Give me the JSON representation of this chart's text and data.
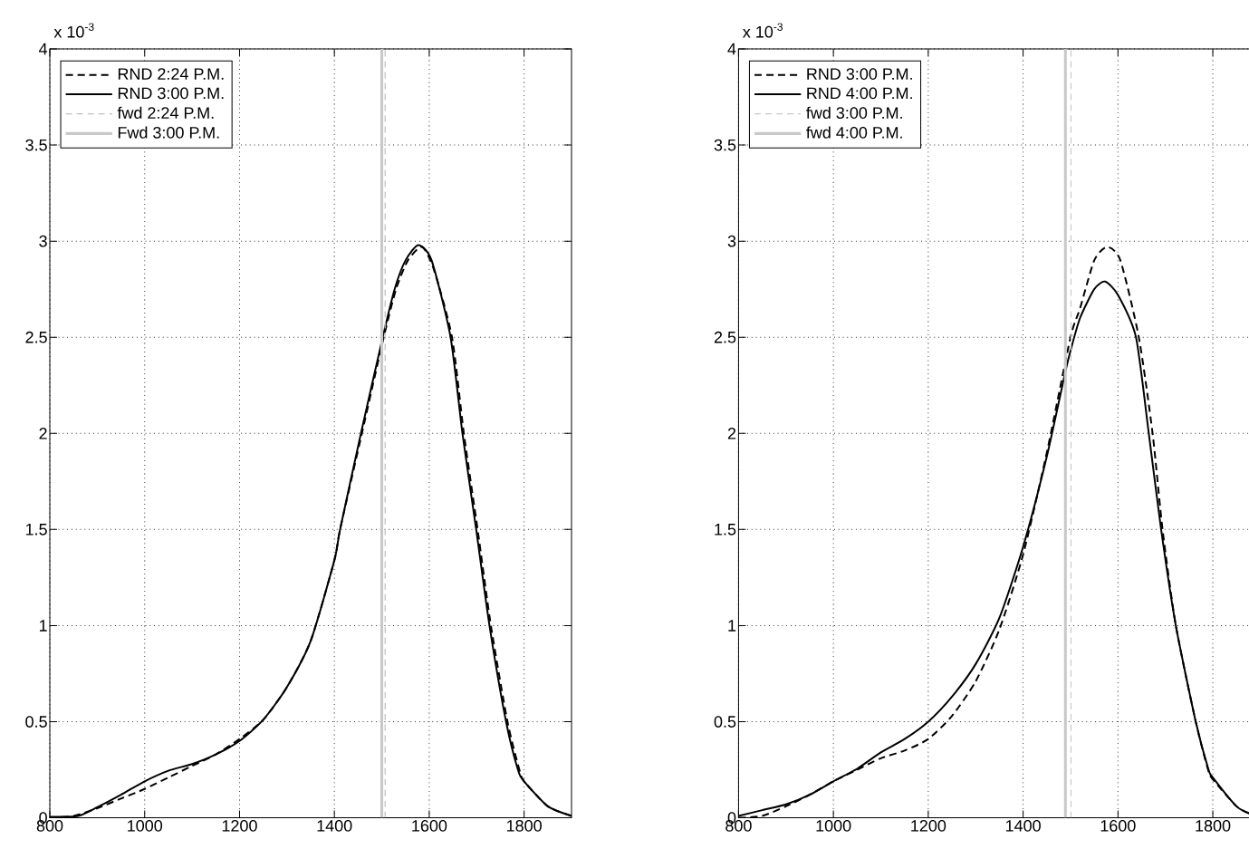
{
  "chart_data": [
    {
      "type": "line",
      "xlim": [
        800,
        1900
      ],
      "ylim": [
        0,
        4
      ],
      "xticks": [
        800,
        1000,
        1200,
        1400,
        1600,
        1800
      ],
      "yticks": [
        0,
        0.5,
        1,
        1.5,
        2,
        2.5,
        3,
        3.5,
        4
      ],
      "grid": true,
      "legend": "top left",
      "annotations": [
        "x 10$^{-3}$"
      ],
      "series": [
        {
          "name": "RND 2:24 P.M.",
          "color": "#000000",
          "line_style": "dashed",
          "x": [
            800,
            850,
            900,
            950,
            1000,
            1050,
            1100,
            1150,
            1200,
            1250,
            1300,
            1350,
            1400,
            1412,
            1458,
            1504,
            1530,
            1555,
            1585,
            1610,
            1648,
            1673,
            1702,
            1730,
            1765,
            1790,
            1800,
            1850,
            1900
          ],
          "values": [
            0,
            0.01,
            0.05,
            0.1,
            0.15,
            0.21,
            0.27,
            0.33,
            0.41,
            0.51,
            0.68,
            0.92,
            1.34,
            1.5,
            2.0,
            2.5,
            2.75,
            2.9,
            2.97,
            2.85,
            2.5,
            2.0,
            1.5,
            1.0,
            0.5,
            0.25,
            0.19,
            0.06,
            0.01
          ]
        },
        {
          "name": "RND 3:00 P.M.",
          "color": "#000000",
          "line_style": "solid",
          "x": [
            800,
            860,
            900,
            950,
            1000,
            1050,
            1100,
            1150,
            1200,
            1250,
            1300,
            1350,
            1400,
            1412,
            1456,
            1502,
            1527,
            1550,
            1577,
            1605,
            1645,
            1670,
            1699,
            1727,
            1762,
            1787,
            1800,
            1850,
            1900
          ],
          "values": [
            0.005,
            0.01,
            0.055,
            0.12,
            0.19,
            0.245,
            0.28,
            0.33,
            0.4,
            0.51,
            0.68,
            0.92,
            1.34,
            1.5,
            2.0,
            2.5,
            2.75,
            2.9,
            2.98,
            2.9,
            2.5,
            2.0,
            1.5,
            1.0,
            0.5,
            0.25,
            0.19,
            0.06,
            0.01
          ]
        },
        {
          "name": "fwd 2:24 P.M.",
          "color": "#c0c0c0",
          "line_style": "dashed",
          "x": [
            1507,
            1507
          ],
          "values": [
            0,
            4
          ]
        },
        {
          "name": "Fwd 3:00 P.M.",
          "color": "#c8c8c8",
          "line_style": "solid",
          "x": [
            1500,
            1500
          ],
          "values": [
            0,
            4
          ]
        }
      ]
    },
    {
      "type": "line",
      "xlim": [
        800,
        1900
      ],
      "ylim": [
        0,
        4
      ],
      "xticks": [
        800,
        1000,
        1200,
        1400,
        1600,
        1800
      ],
      "yticks": [
        0,
        0.5,
        1,
        1.5,
        2,
        2.5,
        3,
        3.5,
        4
      ],
      "grid": true,
      "legend": "top left",
      "annotations": [
        "x 10$^{-3}$"
      ],
      "series": [
        {
          "name": "RND 3:00 P.M.",
          "color": "#000000",
          "line_style": "dashed",
          "x": [
            800,
            850,
            900,
            950,
            1000,
            1050,
            1100,
            1150,
            1200,
            1250,
            1300,
            1350,
            1400,
            1450,
            1500,
            1520,
            1550,
            1577,
            1605,
            1644,
            1673,
            1694,
            1722,
            1764,
            1790,
            1800,
            1850,
            1880
          ],
          "values": [
            0,
            0.01,
            0.06,
            0.12,
            0.19,
            0.25,
            0.31,
            0.35,
            0.41,
            0.53,
            0.71,
            0.98,
            1.37,
            1.9,
            2.5,
            2.65,
            2.9,
            2.97,
            2.9,
            2.5,
            2.0,
            1.5,
            1.0,
            0.5,
            0.25,
            0.2,
            0.06,
            0.02
          ]
        },
        {
          "name": "RND 4:00 P.M.",
          "color": "#000000",
          "line_style": "solid",
          "x": [
            800,
            850,
            900,
            950,
            1000,
            1050,
            1100,
            1150,
            1200,
            1250,
            1300,
            1350,
            1400,
            1450,
            1489,
            1500,
            1520,
            1550,
            1573,
            1600,
            1638,
            1665,
            1691,
            1722,
            1764,
            1791,
            1800,
            1850,
            1880
          ],
          "values": [
            0.01,
            0.04,
            0.07,
            0.12,
            0.19,
            0.255,
            0.34,
            0.41,
            0.5,
            0.63,
            0.8,
            1.04,
            1.41,
            1.88,
            2.32,
            2.43,
            2.6,
            2.75,
            2.79,
            2.72,
            2.5,
            2.0,
            1.5,
            1.0,
            0.5,
            0.25,
            0.21,
            0.06,
            0.02
          ]
        },
        {
          "name": "fwd 3:00 P.M.",
          "color": "#c8c8c8",
          "line_style": "dashed",
          "x": [
            1501,
            1501
          ],
          "values": [
            0,
            4
          ]
        },
        {
          "name": "fwd 4:00 P.M.",
          "color": "#c8c8c8",
          "line_style": "solid",
          "x": [
            1489,
            1489
          ],
          "values": [
            0,
            4
          ]
        }
      ]
    }
  ]
}
